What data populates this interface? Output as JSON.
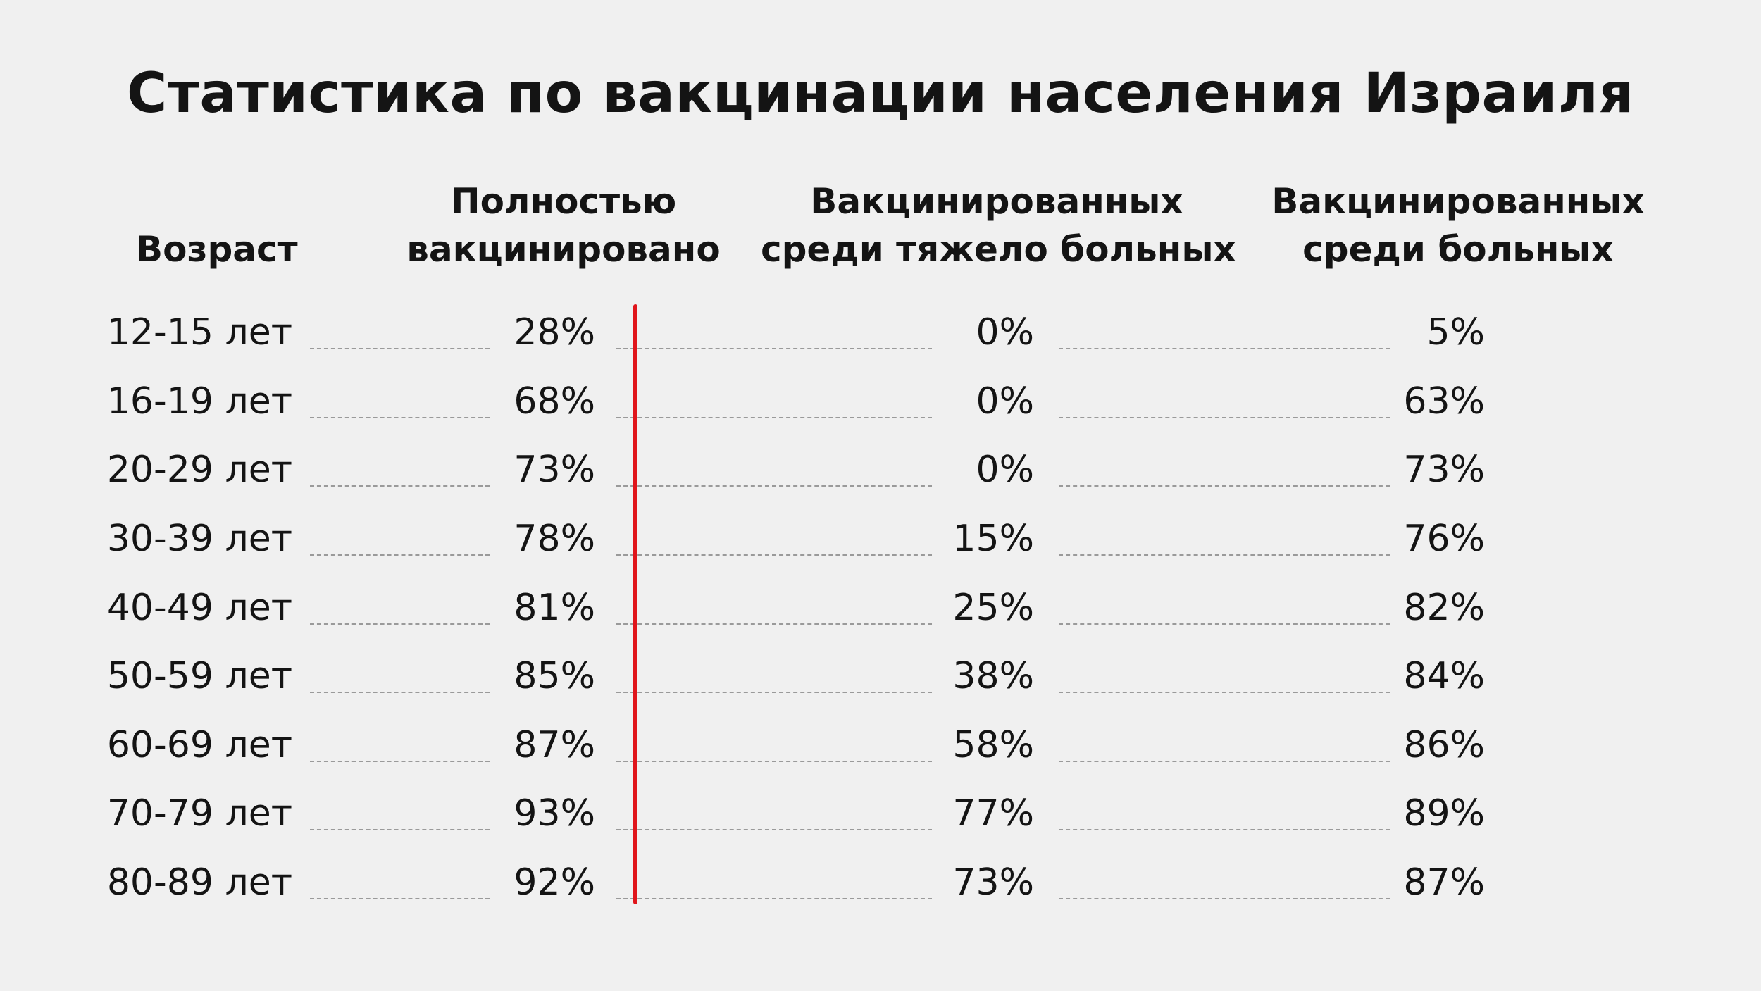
{
  "title": "Статистика по вакцинации населения Израиля",
  "headers": {
    "age": "Возраст",
    "col1": [
      "Полностью",
      "вакцинировано"
    ],
    "col2": [
      "Вакцинированных",
      "среди тяжело больных"
    ],
    "col3": [
      "Вакцинированных",
      "среди больных"
    ]
  },
  "rows": [
    {
      "age": "12-15 лет",
      "fully_vaccinated": "28%",
      "among_severe": "0%",
      "among_sick": "5%"
    },
    {
      "age": "16-19 лет",
      "fully_vaccinated": "68%",
      "among_severe": "0%",
      "among_sick": "63%"
    },
    {
      "age": "20-29 лет",
      "fully_vaccinated": "73%",
      "among_severe": "0%",
      "among_sick": "73%"
    },
    {
      "age": "30-39 лет",
      "fully_vaccinated": "78%",
      "among_severe": "15%",
      "among_sick": "76%"
    },
    {
      "age": "40-49 лет",
      "fully_vaccinated": "81%",
      "among_severe": "25%",
      "among_sick": "82%"
    },
    {
      "age": "50-59 лет",
      "fully_vaccinated": "85%",
      "among_severe": "38%",
      "among_sick": "84%"
    },
    {
      "age": "60-69 лет",
      "fully_vaccinated": "87%",
      "among_severe": "58%",
      "among_sick": "86%"
    },
    {
      "age": "70-79 лет",
      "fully_vaccinated": "93%",
      "among_severe": "77%",
      "among_sick": "89%"
    },
    {
      "age": "80-89 лет",
      "fully_vaccinated": "92%",
      "among_severe": "73%",
      "among_sick": "87%"
    }
  ],
  "colors": {
    "background": "#f0f0f0",
    "text": "#141414",
    "divider": "#e0151b",
    "leader": "#9a9a9a"
  }
}
